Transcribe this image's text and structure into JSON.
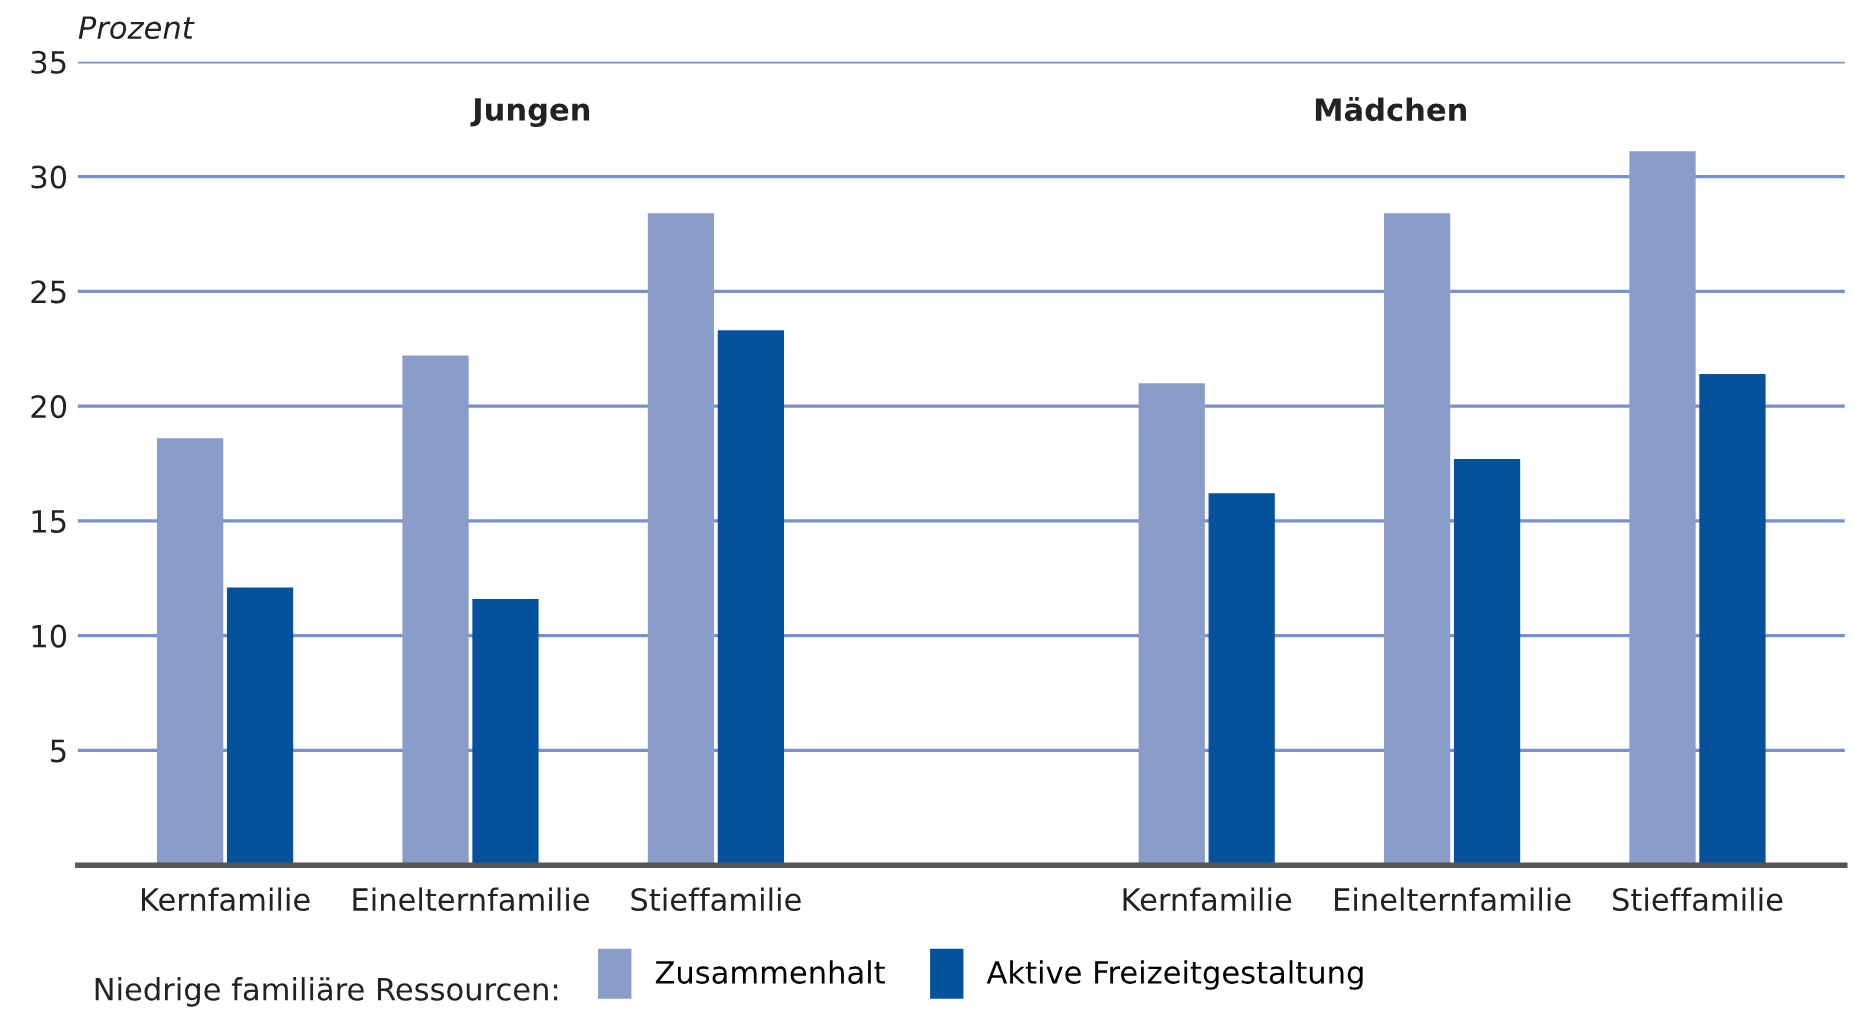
{
  "chart_data": {
    "type": "bar",
    "ylabel": "Prozent",
    "categories": [
      "Kernfamilie",
      "Einelternfamilie",
      "Stieffamilie",
      null,
      "Kernfamilie",
      "Einelternfamilie",
      "Stieffamilie"
    ],
    "series": [
      {
        "name": "Zusammenhalt",
        "color": "#8a9cc8",
        "values": [
          18.6,
          22.2,
          28.4,
          null,
          21.0,
          28.4,
          31.1
        ]
      },
      {
        "name": "Aktive Freizeitgestaltung",
        "color": "#03529b",
        "values": [
          12.1,
          11.6,
          23.3,
          null,
          16.2,
          17.7,
          21.4
        ]
      }
    ],
    "annotations": [
      "Jungen",
      "Mädchen"
    ],
    "legend_title": "Niedrige familiäre Ressourcen:",
    "legend": "bottom",
    "ylim": [
      0,
      35
    ],
    "yticks": [
      5,
      10,
      15,
      20,
      25,
      30,
      35
    ],
    "grid": "y"
  }
}
